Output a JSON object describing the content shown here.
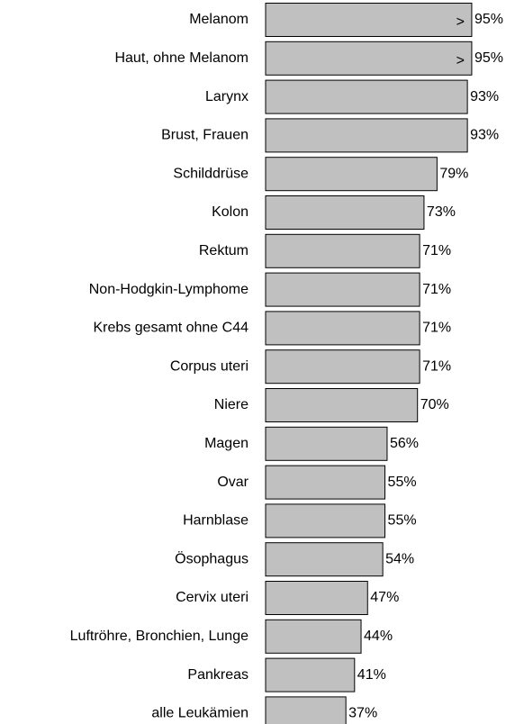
{
  "chart_data": {
    "type": "bar",
    "orientation": "horizontal",
    "categories": [
      "Melanom",
      "Haut, ohne Melanom",
      "Larynx",
      "Brust, Frauen",
      "Schilddrüse",
      "Kolon",
      "Rektum",
      "Non-Hodgkin-Lymphome",
      "Krebs gesamt ohne C44",
      "Corpus uteri",
      "Niere",
      "Magen",
      "Ovar",
      "Harnblase",
      "Ösophagus",
      "Cervix uteri",
      "Luftröhre, Bronchien, Lunge",
      "Pankreas",
      "alle Leukämien"
    ],
    "values": [
      95,
      95,
      93,
      93,
      79,
      73,
      71,
      71,
      71,
      71,
      70,
      56,
      55,
      55,
      54,
      47,
      44,
      41,
      37
    ],
    "value_labels": [
      "95%",
      "95%",
      "93%",
      "93%",
      "79%",
      "73%",
      "71%",
      "71%",
      "71%",
      "71%",
      "70%",
      "56%",
      "55%",
      "55%",
      "54%",
      "47%",
      "44%",
      "41%",
      "37%"
    ],
    "annotations": [
      {
        "category": "Melanom",
        "text": ">"
      },
      {
        "category": "Haut, ohne Melanom",
        "text": ">"
      }
    ],
    "color": "#c0c0c0",
    "xlim": [
      0,
      100
    ]
  }
}
